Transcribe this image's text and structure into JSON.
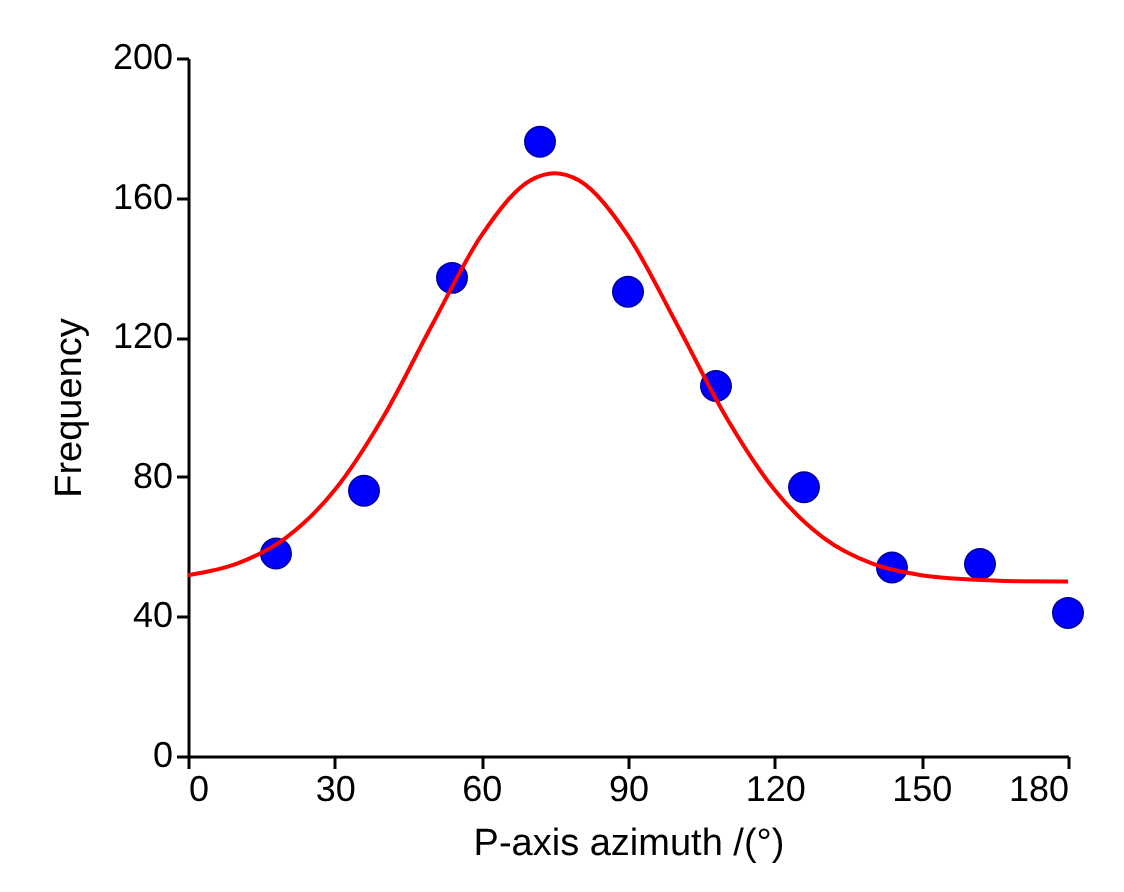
{
  "chart_data": {
    "type": "scatter",
    "xlabel": "P-axis azimuth /(°)",
    "ylabel": "Frequency",
    "x": [
      18,
      36,
      54,
      72,
      90,
      108,
      126,
      144,
      162,
      180
    ],
    "series": [
      {
        "color": "#0000ff",
        "marker": "circle",
        "values": [
          58,
          76,
          137,
          176,
          133,
          106,
          77,
          54,
          55,
          41
        ]
      },
      {
        "type": "line",
        "color": "#ff0000",
        "line_style": "solid",
        "x": [
          0,
          10,
          20,
          30,
          40,
          50,
          60,
          70,
          75,
          80,
          90,
          100,
          110,
          120,
          130,
          140,
          150,
          160,
          170,
          180
        ],
        "values": [
          51.8,
          55.1,
          62.5,
          76.2,
          97.3,
          123.7,
          149.1,
          164.9,
          167,
          164.9,
          149.1,
          123.7,
          97.3,
          76.2,
          62.5,
          55.1,
          51.8,
          50.6,
          50.1,
          50
        ]
      }
    ],
    "xlim": [
      0,
      180
    ],
    "xticks": [
      0,
      30,
      60,
      90,
      120,
      150,
      180
    ],
    "ylim": [
      0,
      200
    ],
    "yticks": [
      0,
      40,
      80,
      120,
      160,
      200
    ],
    "grid": false
  }
}
